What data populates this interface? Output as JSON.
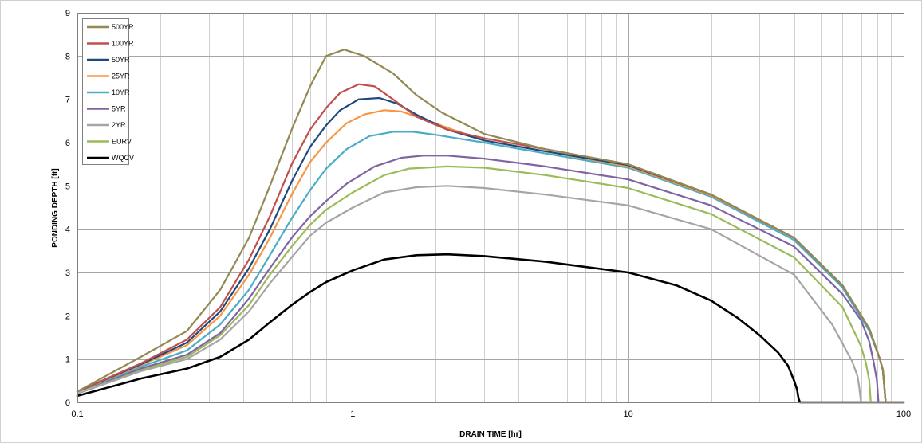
{
  "chart_data": {
    "type": "line",
    "title": "",
    "xlabel": "DRAIN TIME [hr]",
    "ylabel": "PONDING DEPTH [ft]",
    "x_scale": "log",
    "xlim": [
      0.1,
      100
    ],
    "ylim": [
      0,
      9
    ],
    "x_ticks": [
      0.1,
      1,
      10,
      100
    ],
    "x_tick_labels": [
      "0.1",
      "1",
      "10",
      "100"
    ],
    "y_ticks": [
      0,
      1,
      2,
      3,
      4,
      5,
      6,
      7,
      8,
      9
    ],
    "y_tick_labels": [
      "0",
      "1",
      "2",
      "3",
      "4",
      "5",
      "6",
      "7",
      "8",
      "9"
    ],
    "grid": true,
    "legend_position": "top-left",
    "series": [
      {
        "name": "500YR",
        "color": "#938953",
        "x": [
          0.1,
          0.17,
          0.25,
          0.33,
          0.42,
          0.5,
          0.6,
          0.7,
          0.8,
          0.93,
          1.1,
          1.4,
          1.7,
          2.1,
          3,
          5,
          10,
          20,
          40,
          60,
          75,
          82,
          84,
          85,
          86,
          100
        ],
        "y": [
          0.25,
          1.05,
          1.65,
          2.6,
          3.8,
          5.0,
          6.3,
          7.3,
          8.0,
          8.15,
          8.0,
          7.6,
          7.1,
          6.7,
          6.2,
          5.85,
          5.5,
          4.8,
          3.8,
          2.7,
          1.7,
          1.0,
          0.75,
          0.4,
          0,
          0
        ]
      },
      {
        "name": "100YR",
        "color": "#c0504d",
        "x": [
          0.1,
          0.17,
          0.25,
          0.33,
          0.42,
          0.5,
          0.6,
          0.7,
          0.8,
          0.9,
          1.05,
          1.2,
          1.4,
          1.7,
          2.2,
          3,
          5,
          10,
          20,
          40,
          60,
          75,
          82,
          84,
          85,
          86,
          100
        ],
        "y": [
          0.25,
          0.9,
          1.45,
          2.2,
          3.3,
          4.3,
          5.5,
          6.3,
          6.8,
          7.15,
          7.35,
          7.3,
          7.0,
          6.6,
          6.3,
          6.1,
          5.85,
          5.5,
          4.8,
          3.8,
          2.7,
          1.7,
          1.0,
          0.75,
          0.4,
          0,
          0
        ]
      },
      {
        "name": "50YR",
        "color": "#1f497d",
        "x": [
          0.1,
          0.17,
          0.25,
          0.33,
          0.42,
          0.5,
          0.6,
          0.7,
          0.8,
          0.9,
          1.05,
          1.25,
          1.45,
          1.7,
          2.2,
          3,
          5,
          10,
          20,
          40,
          60,
          75,
          82,
          84,
          85,
          86,
          100
        ],
        "y": [
          0.25,
          0.88,
          1.38,
          2.1,
          3.1,
          4.0,
          5.1,
          5.9,
          6.4,
          6.75,
          7.0,
          7.03,
          6.9,
          6.65,
          6.3,
          6.05,
          5.8,
          5.48,
          4.8,
          3.8,
          2.7,
          1.7,
          1.0,
          0.75,
          0.4,
          0,
          0
        ]
      },
      {
        "name": "25YR",
        "color": "#f79646",
        "x": [
          0.1,
          0.17,
          0.25,
          0.33,
          0.42,
          0.5,
          0.6,
          0.7,
          0.8,
          0.95,
          1.1,
          1.3,
          1.5,
          1.8,
          2.3,
          3,
          5,
          10,
          20,
          40,
          60,
          75,
          82,
          84,
          85,
          86,
          100
        ],
        "y": [
          0.25,
          0.86,
          1.32,
          2.0,
          2.95,
          3.8,
          4.8,
          5.55,
          6.0,
          6.45,
          6.65,
          6.75,
          6.72,
          6.55,
          6.3,
          6.05,
          5.8,
          5.45,
          4.78,
          3.8,
          2.7,
          1.7,
          1.0,
          0.75,
          0.4,
          0,
          0
        ]
      },
      {
        "name": "10YR",
        "color": "#4bacc6",
        "x": [
          0.1,
          0.17,
          0.25,
          0.33,
          0.42,
          0.5,
          0.6,
          0.7,
          0.8,
          0.95,
          1.15,
          1.4,
          1.65,
          2,
          2.5,
          3,
          5,
          10,
          20,
          40,
          60,
          75,
          82,
          84,
          85,
          86,
          100
        ],
        "y": [
          0.25,
          0.82,
          1.2,
          1.8,
          2.6,
          3.4,
          4.25,
          4.9,
          5.4,
          5.85,
          6.15,
          6.25,
          6.25,
          6.18,
          6.08,
          6.0,
          5.75,
          5.42,
          4.75,
          3.75,
          2.65,
          1.65,
          1.0,
          0.75,
          0.4,
          0,
          0
        ]
      },
      {
        "name": "5YR",
        "color": "#8064a2",
        "x": [
          0.1,
          0.17,
          0.25,
          0.33,
          0.42,
          0.5,
          0.6,
          0.7,
          0.8,
          0.95,
          1.2,
          1.5,
          1.8,
          2.2,
          3,
          5,
          10,
          20,
          40,
          60,
          70,
          75,
          78,
          80,
          81,
          100
        ],
        "y": [
          0.25,
          0.78,
          1.1,
          1.6,
          2.4,
          3.1,
          3.8,
          4.3,
          4.65,
          5.05,
          5.45,
          5.65,
          5.7,
          5.7,
          5.63,
          5.45,
          5.15,
          4.55,
          3.6,
          2.5,
          1.9,
          1.4,
          0.9,
          0.5,
          0,
          0
        ]
      },
      {
        "name": "2YR",
        "color": "#a5a5a5",
        "x": [
          0.1,
          0.17,
          0.25,
          0.33,
          0.42,
          0.5,
          0.6,
          0.7,
          0.8,
          1.0,
          1.3,
          1.7,
          2.2,
          3,
          5,
          10,
          20,
          40,
          55,
          65,
          68,
          69,
          70,
          100
        ],
        "y": [
          0.2,
          0.72,
          1.0,
          1.45,
          2.1,
          2.75,
          3.35,
          3.85,
          4.15,
          4.5,
          4.85,
          4.97,
          5.0,
          4.95,
          4.8,
          4.55,
          4.0,
          2.95,
          1.8,
          0.95,
          0.6,
          0.35,
          0,
          0
        ]
      },
      {
        "name": "EURV",
        "color": "#9bbb59",
        "x": [
          0.1,
          0.17,
          0.25,
          0.33,
          0.42,
          0.5,
          0.6,
          0.7,
          0.8,
          1.0,
          1.3,
          1.6,
          2.2,
          3,
          5,
          10,
          20,
          40,
          60,
          70,
          73,
          75,
          76,
          100
        ],
        "y": [
          0.25,
          0.75,
          1.05,
          1.55,
          2.25,
          2.95,
          3.6,
          4.1,
          4.45,
          4.85,
          5.25,
          5.4,
          5.45,
          5.42,
          5.25,
          4.95,
          4.35,
          3.35,
          2.2,
          1.3,
          0.9,
          0.5,
          0,
          0
        ]
      },
      {
        "name": "WQCV",
        "color": "#000000",
        "x": [
          0.1,
          0.17,
          0.25,
          0.33,
          0.42,
          0.5,
          0.6,
          0.7,
          0.8,
          1.0,
          1.3,
          1.7,
          2.2,
          3,
          5,
          10,
          15,
          20,
          25,
          30,
          35,
          38,
          40,
          41,
          41.5,
          42,
          100
        ],
        "y": [
          0.15,
          0.55,
          0.78,
          1.05,
          1.45,
          1.85,
          2.25,
          2.55,
          2.78,
          3.05,
          3.3,
          3.4,
          3.42,
          3.38,
          3.25,
          3.0,
          2.7,
          2.35,
          1.95,
          1.55,
          1.15,
          0.85,
          0.5,
          0.3,
          0.1,
          0,
          0
        ]
      }
    ]
  }
}
